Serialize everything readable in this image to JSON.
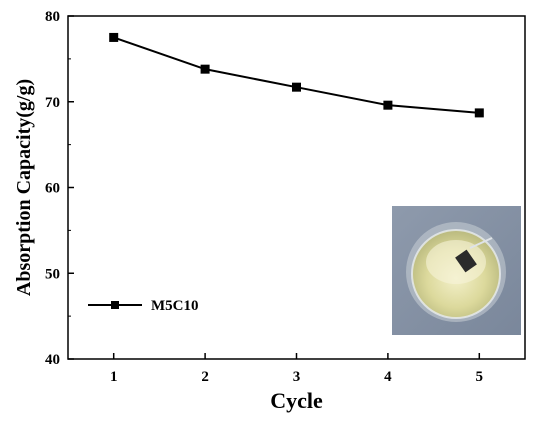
{
  "chart_data": {
    "type": "line",
    "title": "",
    "xlabel": "Cycle",
    "ylabel": "Absorption Capacity(g/g)",
    "xlim": [
      0.5,
      5.5
    ],
    "ylim": [
      40,
      80
    ],
    "xticks": [
      "1",
      "2",
      "3",
      "4",
      "5"
    ],
    "yticks": [
      "40",
      "50",
      "60",
      "70",
      "80"
    ],
    "grid": false,
    "legend_position": "bottom-left",
    "series": [
      {
        "name": "M5C10",
        "marker": "square",
        "color": "#000000",
        "x": [
          1,
          2,
          3,
          4,
          5
        ],
        "y": [
          77.5,
          73.8,
          71.7,
          69.6,
          68.7
        ]
      }
    ],
    "inset_image": "photo of beaker with yellowish liquid and small dark sample"
  }
}
